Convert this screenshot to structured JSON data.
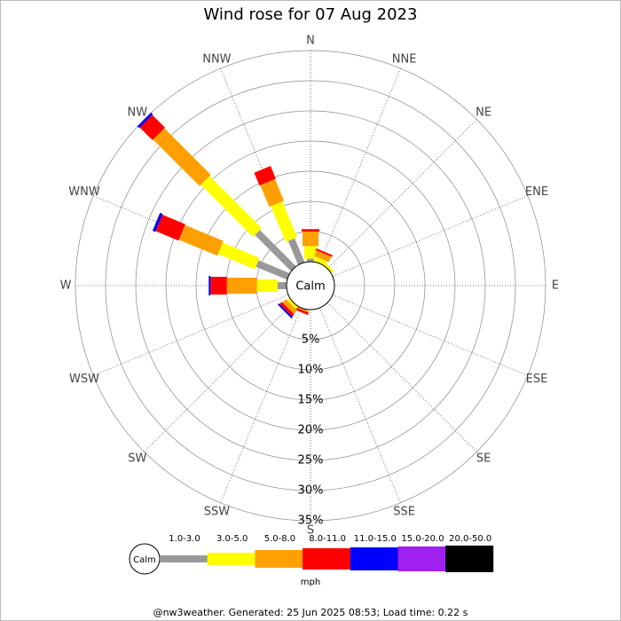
{
  "chart_data": {
    "type": "windrose",
    "title": "Wind rose for 07 Aug 2023",
    "categories": [
      "N",
      "NNE",
      "NE",
      "ENE",
      "E",
      "ESE",
      "SE",
      "SSE",
      "S",
      "SSW",
      "SW",
      "WSW",
      "W",
      "WNW",
      "NW",
      "NNW"
    ],
    "series": [
      {
        "name": "1.0-3.0",
        "color": "#999999",
        "values": [
          0.5,
          0,
          0,
          0,
          0,
          0,
          0,
          0,
          0,
          0,
          0,
          0,
          1.5,
          5.6,
          8.5,
          4.3
        ]
      },
      {
        "name": "3.0-5.0",
        "color": "#ffff00",
        "values": [
          2.1,
          0.8,
          0.5,
          0,
          0,
          0,
          0,
          0,
          0,
          0,
          0.5,
          0,
          3.4,
          6.6,
          12.2,
          6.4
        ]
      },
      {
        "name": "5.0-8.0",
        "color": "#ffa000",
        "values": [
          2.4,
          1.0,
          0,
          0,
          0,
          0,
          0,
          0,
          0,
          0.3,
          0.8,
          0,
          5.0,
          6.9,
          10.9,
          3.9
        ]
      },
      {
        "name": "8.0-11.0",
        "color": "#ff0000",
        "values": [
          0.4,
          0.3,
          0,
          0,
          0,
          0,
          0,
          0,
          0,
          0.4,
          0.5,
          0,
          2.7,
          4.1,
          3.0,
          2.3
        ]
      },
      {
        "name": "11.0-15.0",
        "color": "#0000ff",
        "values": [
          0,
          0,
          0,
          0,
          0,
          0,
          0,
          0,
          0,
          0,
          0.3,
          0,
          0.3,
          0.5,
          0.4,
          0
        ]
      },
      {
        "name": "15.0-20.0",
        "color": "#a020f0",
        "values": [
          0,
          0,
          0,
          0,
          0,
          0,
          0,
          0,
          0,
          0,
          0,
          0,
          0,
          0,
          0,
          0
        ]
      },
      {
        "name": "20.0-50.0",
        "color": "#000000",
        "values": [
          0,
          0,
          0,
          0,
          0,
          0,
          0,
          0,
          0,
          0,
          0,
          0,
          0,
          0,
          0,
          0
        ]
      }
    ],
    "rlim": [
      0,
      35
    ],
    "rticks": [
      {
        "value": 5,
        "label": "5%"
      },
      {
        "value": 10,
        "label": "10%"
      },
      {
        "value": 15,
        "label": "15%"
      },
      {
        "value": 20,
        "label": "20%"
      },
      {
        "value": 25,
        "label": "25%"
      },
      {
        "value": 30,
        "label": "30%"
      },
      {
        "value": 35,
        "label": "35%"
      }
    ],
    "calm_label": "Calm",
    "unit": "mph",
    "footer": "@nw3weather. Generated: 25 Jun 2025 08:53; Load time: 0.22 s"
  }
}
